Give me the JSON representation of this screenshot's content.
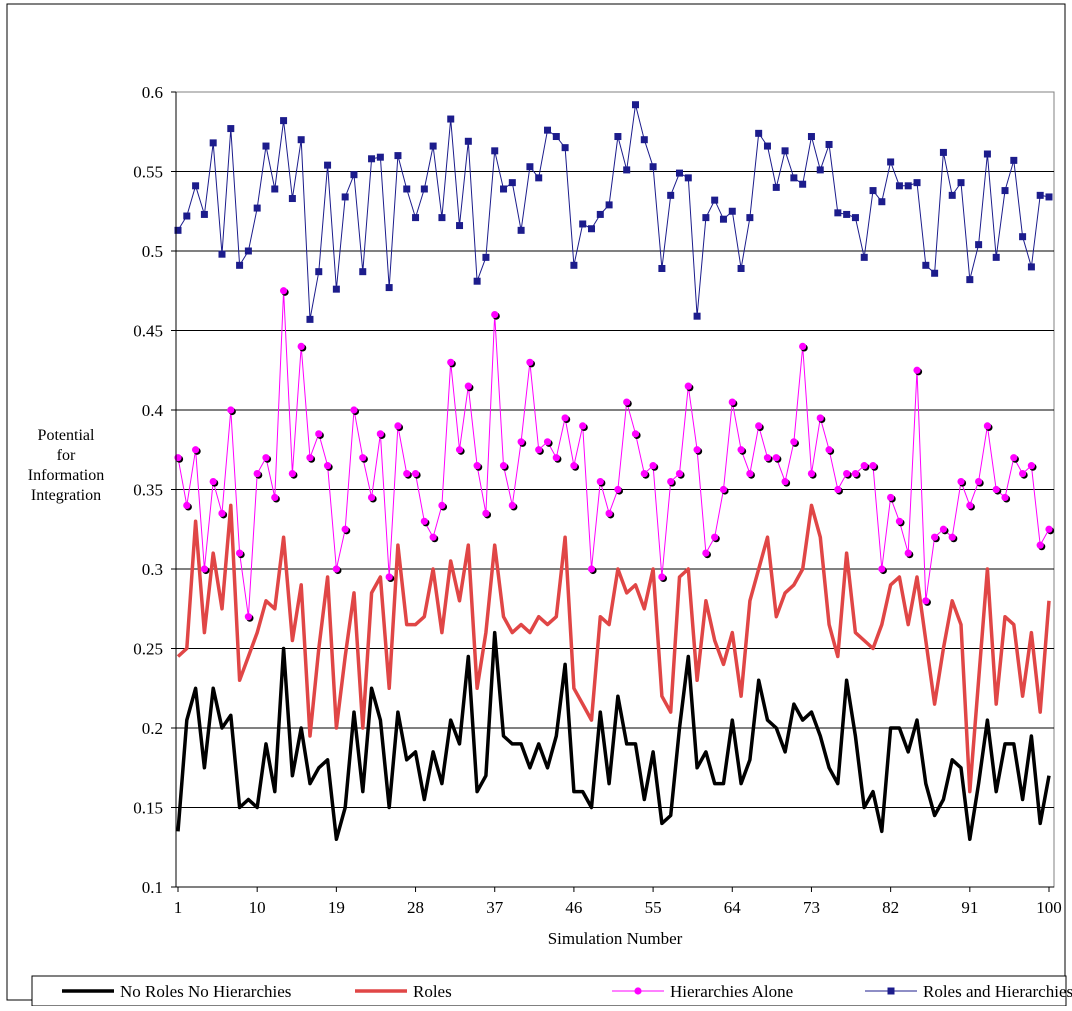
{
  "chart_data": {
    "type": "line",
    "title": "",
    "xlabel": "Simulation Number",
    "ylabel": [
      "Potential",
      "for",
      "Information",
      "Integration"
    ],
    "ylim": [
      0.1,
      0.6
    ],
    "yticks": [
      "0.1",
      "0.15",
      "0.2",
      "0.25",
      "0.3",
      "0.35",
      "0.4",
      "0.45",
      "0.5",
      "0.55",
      "0.6"
    ],
    "xlim": [
      1,
      100
    ],
    "xticks": [
      "1",
      "10",
      "19",
      "28",
      "37",
      "46",
      "55",
      "64",
      "73",
      "82",
      "91",
      "100"
    ],
    "grid": "horizontal",
    "legend_placement": "bottom",
    "series": [
      {
        "name": "No Roles No Hierarchies",
        "color": "#000000",
        "marker": "none",
        "values": [
          0.135,
          0.205,
          0.225,
          0.175,
          0.225,
          0.2,
          0.208,
          0.15,
          0.155,
          0.15,
          0.19,
          0.16,
          0.25,
          0.17,
          0.2,
          0.165,
          0.175,
          0.18,
          0.13,
          0.15,
          0.21,
          0.16,
          0.225,
          0.205,
          0.15,
          0.21,
          0.18,
          0.185,
          0.155,
          0.185,
          0.165,
          0.205,
          0.19,
          0.245,
          0.16,
          0.17,
          0.26,
          0.195,
          0.19,
          0.19,
          0.175,
          0.19,
          0.175,
          0.195,
          0.24,
          0.16,
          0.16,
          0.15,
          0.21,
          0.165,
          0.22,
          0.19,
          0.19,
          0.155,
          0.185,
          0.14,
          0.145,
          0.2,
          0.245,
          0.175,
          0.185,
          0.165,
          0.165,
          0.205,
          0.165,
          0.18,
          0.23,
          0.205,
          0.2,
          0.185,
          0.215,
          0.205,
          0.21,
          0.195,
          0.175,
          0.165,
          0.23,
          0.195,
          0.15,
          0.16,
          0.135,
          0.2,
          0.2,
          0.185,
          0.205,
          0.165,
          0.145,
          0.155,
          0.18,
          0.175,
          0.13,
          0.165,
          0.205,
          0.16,
          0.19,
          0.19,
          0.155,
          0.195,
          0.14,
          0.17
        ]
      },
      {
        "name": "Roles",
        "color": "#e04646",
        "marker": "none",
        "values": [
          0.245,
          0.25,
          0.33,
          0.26,
          0.31,
          0.275,
          0.34,
          0.23,
          0.245,
          0.26,
          0.28,
          0.275,
          0.32,
          0.255,
          0.29,
          0.195,
          0.25,
          0.295,
          0.2,
          0.245,
          0.285,
          0.2,
          0.285,
          0.295,
          0.225,
          0.315,
          0.265,
          0.265,
          0.27,
          0.3,
          0.26,
          0.305,
          0.28,
          0.315,
          0.225,
          0.26,
          0.315,
          0.27,
          0.26,
          0.265,
          0.26,
          0.27,
          0.265,
          0.27,
          0.32,
          0.225,
          0.215,
          0.205,
          0.27,
          0.265,
          0.3,
          0.285,
          0.29,
          0.275,
          0.3,
          0.22,
          0.21,
          0.295,
          0.3,
          0.23,
          0.28,
          0.255,
          0.24,
          0.26,
          0.22,
          0.28,
          0.3,
          0.32,
          0.27,
          0.285,
          0.29,
          0.3,
          0.34,
          0.32,
          0.265,
          0.245,
          0.31,
          0.26,
          0.255,
          0.25,
          0.265,
          0.29,
          0.295,
          0.265,
          0.295,
          0.255,
          0.215,
          0.25,
          0.28,
          0.265,
          0.16,
          0.23,
          0.3,
          0.215,
          0.27,
          0.265,
          0.22,
          0.26,
          0.21,
          0.28
        ]
      },
      {
        "name": "Hierarchies Alone",
        "color": "#ff00ff",
        "marker": "circle",
        "values": [
          0.37,
          0.34,
          0.375,
          0.3,
          0.355,
          0.335,
          0.4,
          0.31,
          0.27,
          0.36,
          0.37,
          0.345,
          0.475,
          0.36,
          0.44,
          0.37,
          0.385,
          0.365,
          0.3,
          0.325,
          0.4,
          0.37,
          0.345,
          0.385,
          0.295,
          0.39,
          0.36,
          0.36,
          0.33,
          0.32,
          0.34,
          0.43,
          0.375,
          0.415,
          0.365,
          0.335,
          0.46,
          0.365,
          0.34,
          0.38,
          0.43,
          0.375,
          0.38,
          0.37,
          0.395,
          0.365,
          0.39,
          0.3,
          0.355,
          0.335,
          0.35,
          0.405,
          0.385,
          0.36,
          0.365,
          0.295,
          0.355,
          0.36,
          0.415,
          0.375,
          0.31,
          0.32,
          0.35,
          0.405,
          0.375,
          0.36,
          0.39,
          0.37,
          0.37,
          0.355,
          0.38,
          0.44,
          0.36,
          0.395,
          0.375,
          0.35,
          0.36,
          0.36,
          0.365,
          0.365,
          0.3,
          0.345,
          0.33,
          0.31,
          0.425,
          0.28,
          0.32,
          0.325,
          0.32,
          0.355,
          0.34,
          0.355,
          0.39,
          0.35,
          0.345,
          0.37,
          0.36,
          0.365,
          0.315,
          0.325
        ]
      },
      {
        "name": "Roles and Hierarchies",
        "color": "#1c1c8c",
        "marker": "square",
        "values": [
          0.513,
          0.522,
          0.541,
          0.523,
          0.568,
          0.498,
          0.577,
          0.491,
          0.5,
          0.527,
          0.566,
          0.539,
          0.582,
          0.533,
          0.57,
          0.457,
          0.487,
          0.554,
          0.476,
          0.534,
          0.548,
          0.487,
          0.558,
          0.559,
          0.477,
          0.56,
          0.539,
          0.521,
          0.539,
          0.566,
          0.521,
          0.583,
          0.516,
          0.569,
          0.481,
          0.496,
          0.563,
          0.539,
          0.543,
          0.513,
          0.553,
          0.546,
          0.576,
          0.572,
          0.565,
          0.491,
          0.517,
          0.514,
          0.523,
          0.529,
          0.572,
          0.551,
          0.592,
          0.57,
          0.553,
          0.489,
          0.535,
          0.549,
          0.546,
          0.459,
          0.521,
          0.532,
          0.52,
          0.525,
          0.489,
          0.521,
          0.574,
          0.566,
          0.54,
          0.563,
          0.546,
          0.542,
          0.572,
          0.551,
          0.567,
          0.524,
          0.523,
          0.521,
          0.496,
          0.538,
          0.531,
          0.556,
          0.541,
          0.541,
          0.543,
          0.491,
          0.486,
          0.562,
          0.535,
          0.543,
          0.482,
          0.504,
          0.561,
          0.496,
          0.538,
          0.557,
          0.509,
          0.49,
          0.535,
          0.534
        ]
      }
    ]
  }
}
